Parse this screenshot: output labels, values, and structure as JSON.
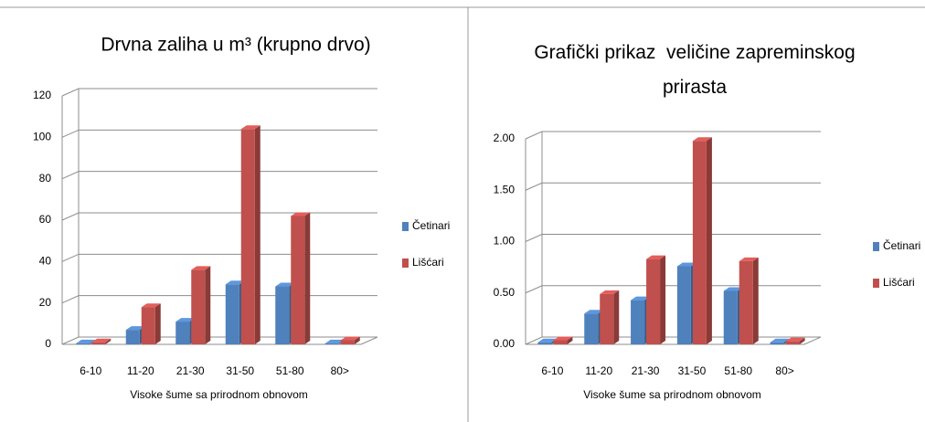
{
  "chart_data": [
    {
      "type": "bar3d",
      "title": "Drvna zaliha u m³ (krupno drvo)",
      "x_label": "Visoke šume sa prirodnom obnovom",
      "categories": [
        "6-10",
        "11-20",
        "21-30",
        "31-50",
        "51-80",
        "80>"
      ],
      "series": [
        {
          "name": "Četinari",
          "color": "#4f81bd",
          "values": [
            0.5,
            7,
            11,
            29,
            28,
            0.5
          ]
        },
        {
          "name": "Lišćari",
          "color": "#c0504d",
          "values": [
            1,
            18,
            36,
            104,
            62,
            2
          ]
        }
      ],
      "ylim": [
        0,
        120
      ],
      "yticks": [
        0,
        20,
        40,
        60,
        80,
        100,
        120
      ],
      "grid": true,
      "legend": "right"
    },
    {
      "type": "bar3d",
      "title": "Grafički prikaz  veličine zapreminskog prirasta",
      "x_label": "Visoke šume sa prirodnom obnovom",
      "categories": [
        "6-10",
        "11-20",
        "21-30",
        "31-50",
        "51-80",
        "80>"
      ],
      "series": [
        {
          "name": "Četinari",
          "color": "#4f81bd",
          "values": [
            0.02,
            0.3,
            0.43,
            0.76,
            0.52,
            0.02
          ]
        },
        {
          "name": "Lišćari",
          "color": "#c0504d",
          "values": [
            0.04,
            0.49,
            0.83,
            1.98,
            0.81,
            0.03
          ]
        }
      ],
      "ylim": [
        0,
        2
      ],
      "yticks": [
        {
          "value": 0,
          "label": "0.00"
        },
        {
          "value": 0.5,
          "label": "0.50"
        },
        {
          "value": 1,
          "label": "1.00"
        },
        {
          "value": 1.5,
          "label": "1.50"
        },
        {
          "value": 2,
          "label": "2.00"
        }
      ],
      "grid": true,
      "legend": "right"
    }
  ]
}
